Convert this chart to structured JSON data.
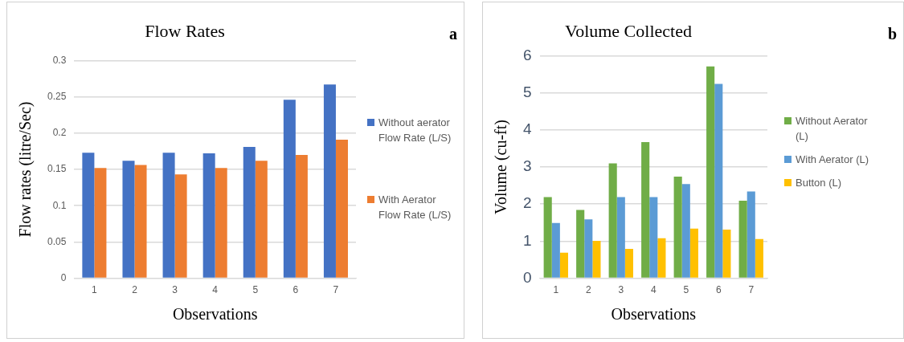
{
  "chart_data": [
    {
      "type": "bar",
      "title": "Flow Rates",
      "xlabel": "Observations",
      "ylabel": "Flow rates (litre/Sec)",
      "annotations": [
        "a"
      ],
      "categories": [
        "1",
        "2",
        "3",
        "4",
        "5",
        "6",
        "7"
      ],
      "series": [
        {
          "name": "Without aerator Flow Rate (L/S)",
          "color": "#4472c4",
          "values": [
            0.173,
            0.162,
            0.173,
            0.172,
            0.181,
            0.246,
            0.267
          ]
        },
        {
          "name": "With Aerator Flow Rate (L/S)",
          "color": "#ed7d31",
          "values": [
            0.152,
            0.156,
            0.143,
            0.152,
            0.162,
            0.17,
            0.191
          ]
        }
      ],
      "ylim": [
        0,
        0.3
      ],
      "yticks": [
        0,
        0.05,
        0.1,
        0.15,
        0.2,
        0.25,
        0.3
      ],
      "grid": "y",
      "legend": "right"
    },
    {
      "type": "bar",
      "title": "Volume Collected",
      "xlabel": "Observations",
      "ylabel": "Volume (cu-ft)",
      "annotations": [
        "b"
      ],
      "categories": [
        "1",
        "2",
        "3",
        "4",
        "5",
        "6",
        "7"
      ],
      "series": [
        {
          "name": "Without Aerator (L)",
          "color": "#70ad47",
          "values": [
            2.19,
            1.84,
            3.1,
            3.67,
            2.74,
            5.71,
            2.09
          ]
        },
        {
          "name": "With Aerator (L)",
          "color": "#5b9bd5",
          "values": [
            1.49,
            1.59,
            2.19,
            2.19,
            2.54,
            5.24,
            2.34
          ]
        },
        {
          "name": "Button (L)",
          "color": "#ffc000",
          "values": [
            0.69,
            1.01,
            0.79,
            1.08,
            1.34,
            1.31,
            1.06
          ]
        }
      ],
      "ylim": [
        0,
        6
      ],
      "yticks": [
        0,
        1,
        2,
        3,
        4,
        5,
        6
      ],
      "grid": "y",
      "legend": "right"
    }
  ]
}
